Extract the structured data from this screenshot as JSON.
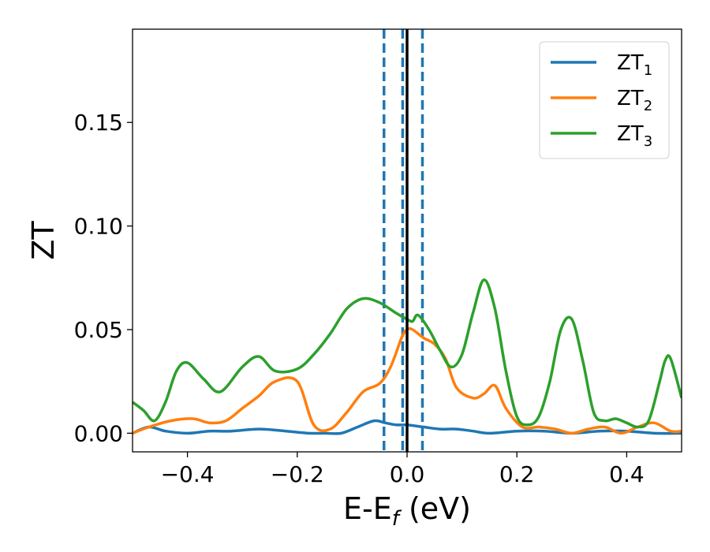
{
  "chart_data": {
    "type": "line",
    "title": "",
    "xlabel": {
      "main": "E-E",
      "sub": "f",
      "suffix": " (eV)"
    },
    "ylabel": "ZT",
    "xlim": [
      -0.5,
      0.5
    ],
    "ylim": [
      -0.009,
      0.195
    ],
    "xticks": [
      -0.4,
      -0.2,
      0.0,
      0.2,
      0.4
    ],
    "xtick_labels": [
      "−0.4",
      "−0.2",
      "0.0",
      "0.2",
      "0.4"
    ],
    "yticks": [
      0.0,
      0.05,
      0.1,
      0.15
    ],
    "ytick_labels": [
      "0.00",
      "0.05",
      "0.10",
      "0.15"
    ],
    "grid": false,
    "legend_placement": "top-right",
    "vertical_lines": [
      {
        "x": -0.042,
        "style": "dashed",
        "color": "#1f77b4"
      },
      {
        "x": -0.008,
        "style": "dashed",
        "color": "#1f77b4"
      },
      {
        "x": 0.028,
        "style": "dashed",
        "color": "#1f77b4"
      },
      {
        "x": 0.0,
        "style": "solid",
        "color": "#000000"
      }
    ],
    "series": [
      {
        "name": "ZT",
        "name_sub": "1",
        "color": "#1f77b4",
        "x": [
          -0.5,
          -0.47,
          -0.44,
          -0.4,
          -0.36,
          -0.32,
          -0.27,
          -0.22,
          -0.18,
          -0.15,
          -0.12,
          -0.09,
          -0.06,
          -0.04,
          -0.02,
          0.0,
          0.03,
          0.06,
          0.09,
          0.12,
          0.15,
          0.2,
          0.25,
          0.3,
          0.35,
          0.4,
          0.45,
          0.5
        ],
        "y": [
          0.0,
          0.003,
          0.001,
          0.0,
          0.001,
          0.001,
          0.002,
          0.001,
          0.0,
          0.0,
          0.0,
          0.003,
          0.006,
          0.005,
          0.004,
          0.004,
          0.003,
          0.002,
          0.002,
          0.001,
          0.0,
          0.001,
          0.001,
          0.0,
          0.001,
          0.001,
          0.0,
          0.0
        ]
      },
      {
        "name": "ZT",
        "name_sub": "2",
        "color": "#ff7f0e",
        "x": [
          -0.5,
          -0.47,
          -0.43,
          -0.39,
          -0.36,
          -0.33,
          -0.3,
          -0.27,
          -0.24,
          -0.2,
          -0.17,
          -0.14,
          -0.11,
          -0.08,
          -0.05,
          -0.03,
          -0.01,
          0.0,
          0.01,
          0.03,
          0.05,
          0.07,
          0.09,
          0.12,
          0.14,
          0.16,
          0.18,
          0.21,
          0.24,
          0.27,
          0.3,
          0.33,
          0.36,
          0.39,
          0.42,
          0.45,
          0.48,
          0.5
        ],
        "y": [
          0.0,
          0.003,
          0.006,
          0.007,
          0.005,
          0.006,
          0.012,
          0.018,
          0.025,
          0.025,
          0.004,
          0.002,
          0.01,
          0.02,
          0.024,
          0.032,
          0.046,
          0.05,
          0.05,
          0.046,
          0.043,
          0.036,
          0.022,
          0.017,
          0.019,
          0.023,
          0.012,
          0.003,
          0.003,
          0.002,
          0.0,
          0.002,
          0.003,
          0.0,
          0.003,
          0.005,
          0.001,
          0.001
        ]
      },
      {
        "name": "ZT",
        "name_sub": "3",
        "color": "#2ca02c",
        "x": [
          -0.5,
          -0.48,
          -0.46,
          -0.44,
          -0.42,
          -0.4,
          -0.37,
          -0.34,
          -0.3,
          -0.27,
          -0.24,
          -0.2,
          -0.17,
          -0.14,
          -0.11,
          -0.08,
          -0.05,
          -0.02,
          0.0,
          0.01,
          0.02,
          0.04,
          0.06,
          0.08,
          0.1,
          0.12,
          0.14,
          0.16,
          0.18,
          0.2,
          0.22,
          0.24,
          0.26,
          0.28,
          0.3,
          0.32,
          0.34,
          0.36,
          0.38,
          0.4,
          0.42,
          0.44,
          0.46,
          0.47,
          0.48,
          0.5
        ],
        "y": [
          0.015,
          0.011,
          0.006,
          0.015,
          0.03,
          0.034,
          0.026,
          0.02,
          0.032,
          0.037,
          0.03,
          0.031,
          0.038,
          0.048,
          0.06,
          0.065,
          0.063,
          0.058,
          0.055,
          0.054,
          0.057,
          0.05,
          0.04,
          0.032,
          0.038,
          0.058,
          0.074,
          0.06,
          0.03,
          0.008,
          0.004,
          0.008,
          0.025,
          0.05,
          0.055,
          0.035,
          0.01,
          0.006,
          0.007,
          0.005,
          0.003,
          0.006,
          0.025,
          0.035,
          0.036,
          0.017
        ]
      }
    ]
  }
}
